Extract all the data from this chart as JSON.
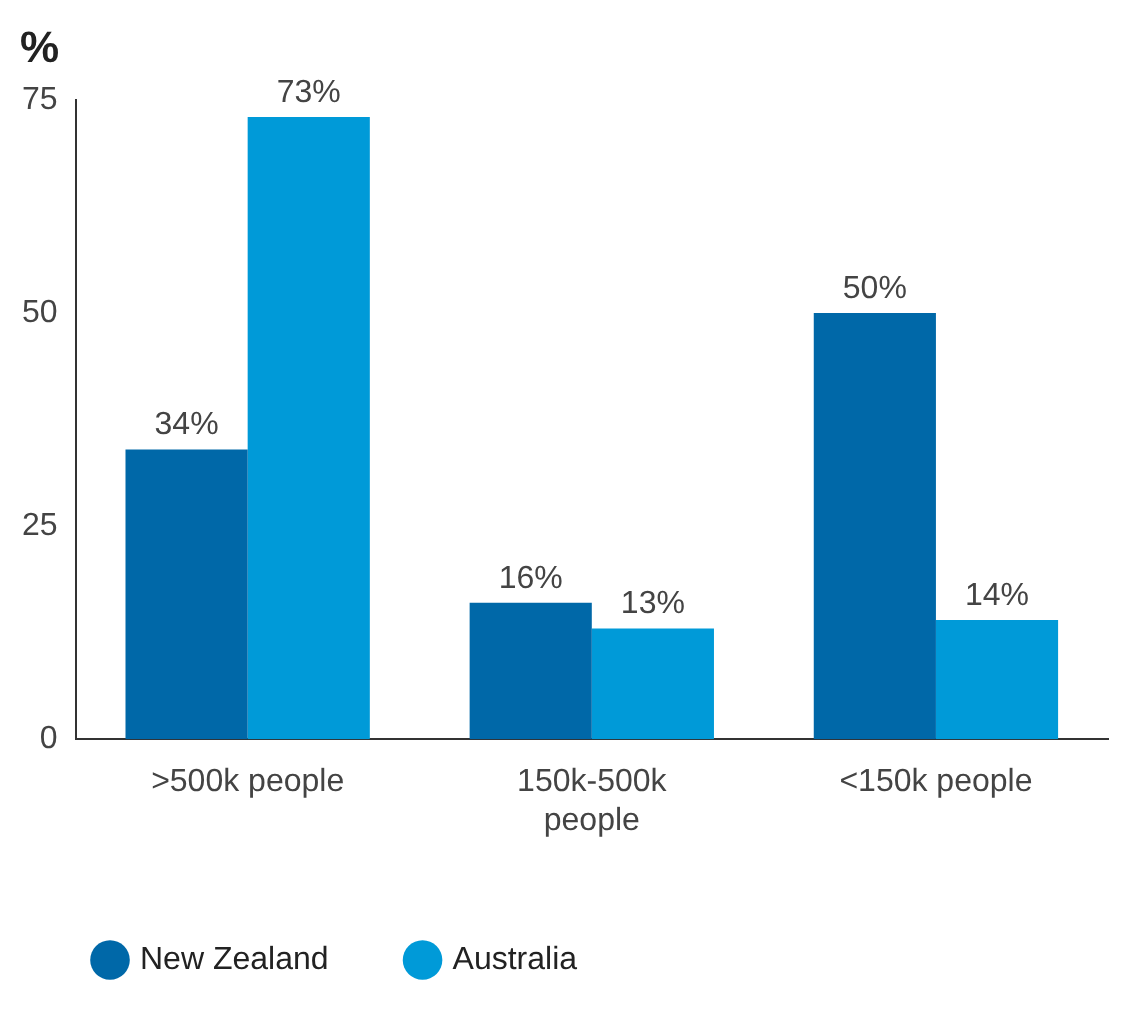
{
  "chart_data": {
    "type": "bar",
    "ylabel": "%",
    "categories": [
      ">500k people",
      "150k-500k people",
      "<150k people"
    ],
    "series": [
      {
        "name": "New Zealand",
        "color": "#0068a8",
        "values": [
          34,
          16,
          50
        ],
        "value_labels": [
          "34%",
          "16%",
          "50%"
        ]
      },
      {
        "name": "Australia",
        "color": "#009ad8",
        "values": [
          73,
          13,
          14
        ],
        "value_labels": [
          "73%",
          "13%",
          "14%"
        ]
      }
    ],
    "ylim": [
      0,
      75
    ],
    "yticks": [
      0,
      25,
      50,
      75
    ],
    "grid": false,
    "legend": "bottom left",
    "marker": "circle"
  }
}
